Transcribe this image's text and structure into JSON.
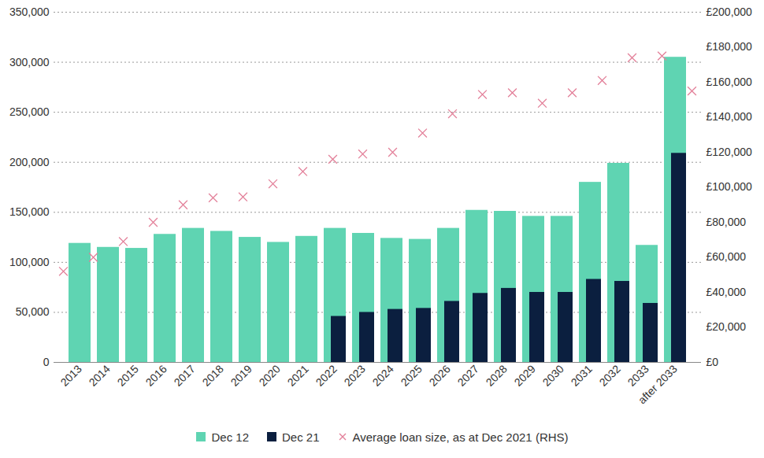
{
  "chart_data": {
    "type": "bar",
    "categories": [
      "2013",
      "2014",
      "2015",
      "2016",
      "2017",
      "2018",
      "2019",
      "2020",
      "2021",
      "2022",
      "2023",
      "2024",
      "2025",
      "2026",
      "2027",
      "2028",
      "2029",
      "2030",
      "2031",
      "2032",
      "2033",
      "after 2033"
    ],
    "series": [
      {
        "name": "Dec 12",
        "type": "bar",
        "color": "#5fd4b2",
        "values": [
          119000,
          115000,
          114000,
          128000,
          134000,
          131000,
          125000,
          120000,
          126000,
          134000,
          129000,
          124000,
          123000,
          134000,
          152000,
          151000,
          146000,
          146000,
          180000,
          199000,
          117000,
          305000
        ]
      },
      {
        "name": "Dec 21",
        "type": "bar",
        "color": "#0b1f3f",
        "values": [
          0,
          0,
          0,
          0,
          0,
          0,
          0,
          0,
          0,
          46000,
          50000,
          53000,
          54000,
          61000,
          69000,
          74000,
          70000,
          70000,
          83000,
          81000,
          59000,
          209000
        ]
      },
      {
        "name": "Average loan size, as at Dec 2021 (RHS)",
        "type": "scatter",
        "marker": "x",
        "axis": "y2",
        "color": "#e3819a",
        "values": [
          52000,
          60000,
          69000,
          80000,
          90000,
          94000,
          94500,
          102000,
          109000,
          116000,
          119000,
          120000,
          131000,
          142000,
          153000,
          154000,
          148000,
          154000,
          161000,
          174000,
          175000,
          155000
        ]
      }
    ],
    "ylim": [
      0,
      350000
    ],
    "yticks": [
      0,
      {
        "value": 50000,
        "label": "50,000"
      },
      {
        "value": 100000,
        "label": "100,000"
      },
      {
        "value": 150000,
        "label": "150,000"
      },
      {
        "value": 200000,
        "label": "200,000"
      },
      {
        "value": 250000,
        "label": "250,000"
      },
      {
        "value": 300000,
        "label": "300,000"
      },
      {
        "value": 350000,
        "label": "350,000"
      }
    ],
    "y2lim": [
      0,
      200000
    ],
    "y2ticks": [
      {
        "value": 0,
        "label": "£0"
      },
      {
        "value": 20000,
        "label": "£20,000"
      },
      {
        "value": 40000,
        "label": "£40,000"
      },
      {
        "value": 60000,
        "label": "£60,000"
      },
      {
        "value": 80000,
        "label": "£80,000"
      },
      {
        "value": 100000,
        "label": "£100,000"
      },
      {
        "value": 120000,
        "label": "£120,000"
      },
      {
        "value": 140000,
        "label": "£140,000"
      },
      {
        "value": 160000,
        "label": "£160,000"
      },
      {
        "value": 180000,
        "label": "£180,000"
      },
      {
        "value": 200000,
        "label": "£200,000"
      }
    ],
    "grid": true,
    "legend": "bottom"
  }
}
